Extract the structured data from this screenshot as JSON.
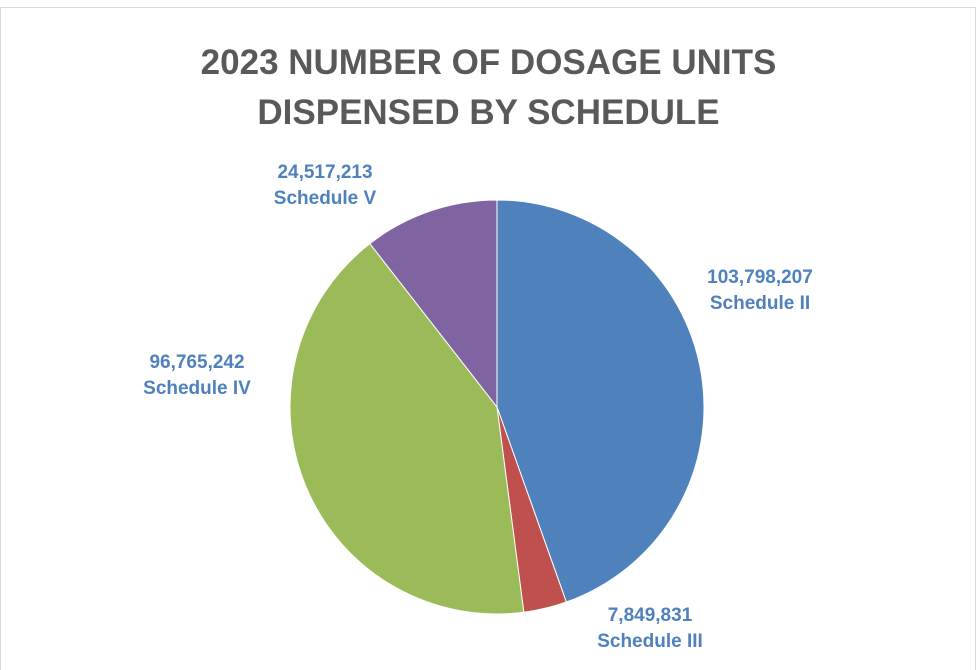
{
  "chart_data": {
    "type": "pie",
    "title": "2023 NUMBER OF DOSAGE UNITS DISPENSED BY SCHEDULE",
    "categories": [
      "Schedule II",
      "Schedule III",
      "Schedule IV",
      "Schedule V"
    ],
    "values": [
      103798207,
      7849831,
      96765242,
      24517213
    ],
    "value_labels": [
      "103,798,207",
      "7,849,831",
      "96,765,242",
      "24,517,213"
    ],
    "colors": [
      "#4f81bd",
      "#c0504d",
      "#9bbb59",
      "#8064a2"
    ]
  }
}
